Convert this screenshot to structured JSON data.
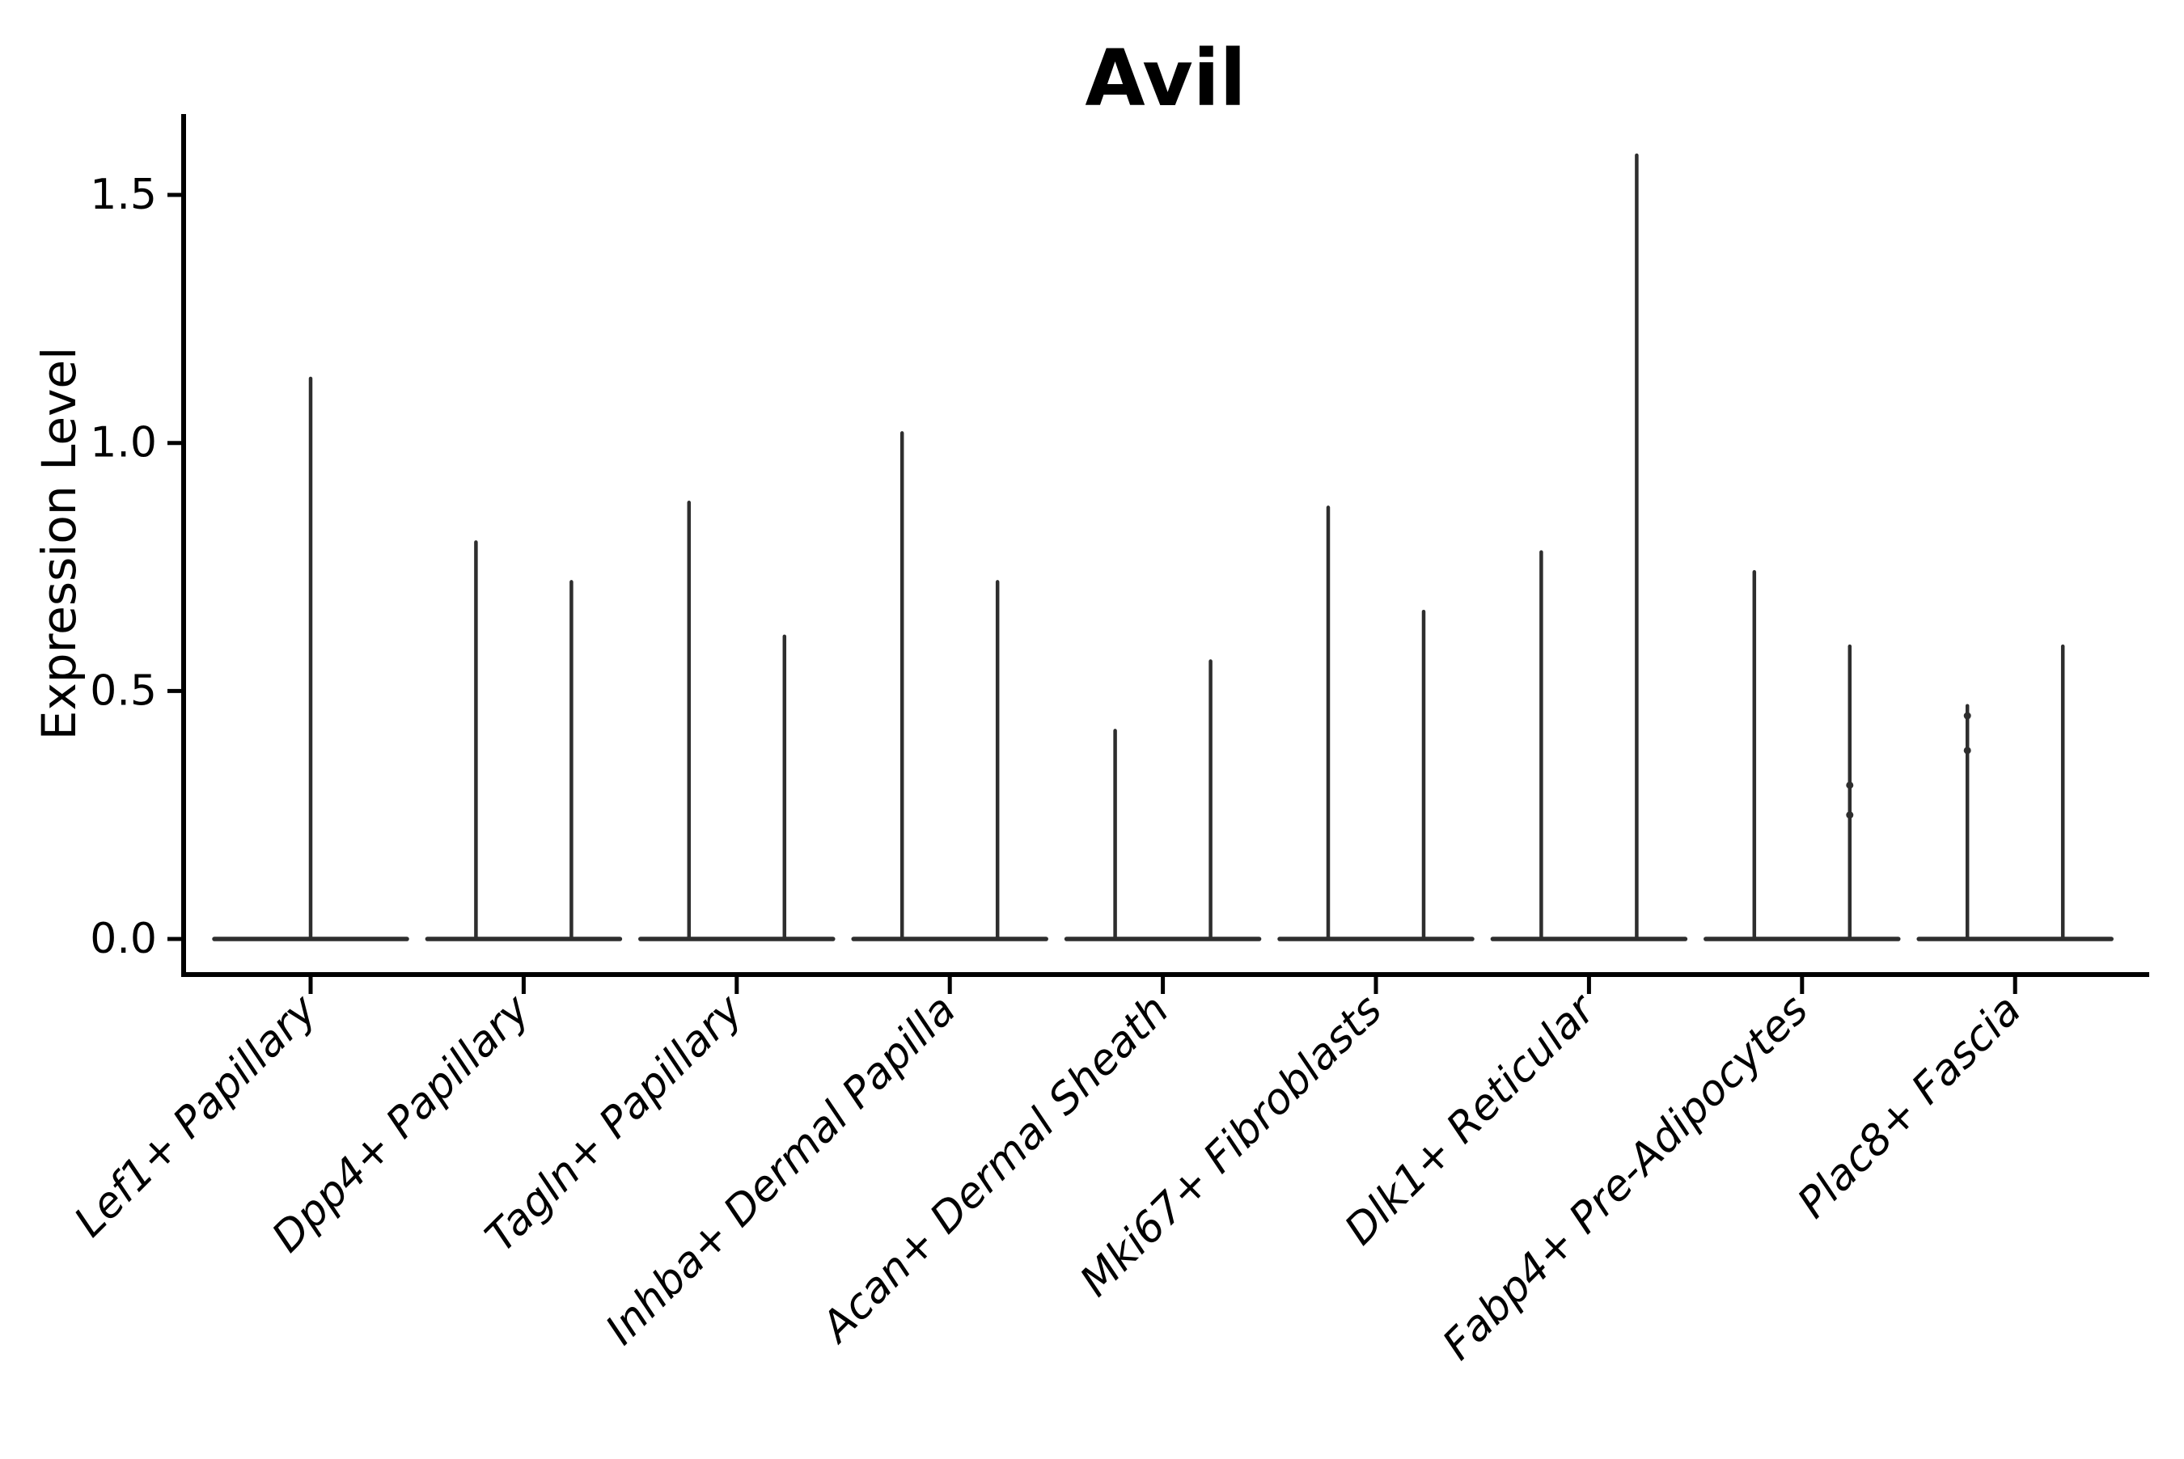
{
  "title": "Avil",
  "y_axis": {
    "label": "Expression Level",
    "tick_labels": [
      "0.0",
      "0.5",
      "1.0",
      "1.5"
    ],
    "tick_values": [
      0.0,
      0.5,
      1.0,
      1.5
    ]
  },
  "x_axis": {
    "label": "",
    "categories": [
      "Lef1+ Papillary",
      "Dpp4+ Papillary",
      "Tagln+ Papillary",
      "Inhba+ Dermal Papilla",
      "Acan+ Dermal Sheath",
      "Mki67+ Fibroblasts",
      "Dlk1+ Reticular",
      "Fabp4+ Pre-Adipocytes",
      "Plac8+ Fascia"
    ]
  },
  "style": {
    "violin_color": "#2e2e2e",
    "axis_color": "#000000",
    "background": "#ffffff"
  },
  "chart_data": {
    "type": "violin",
    "title": "Avil",
    "xlabel": "",
    "ylabel": "Expression Level",
    "ylim": [
      0,
      1.66
    ],
    "yticks": [
      0.0,
      0.5,
      1.0,
      1.5
    ],
    "grid": false,
    "legend": "none",
    "note": "Seurat-style violin plot; expression is near zero for most cells so each violin collapses to a flat baseline at 0 with a thin vertical spike up to the category maximum. Category 1 shows a single centered violin; all other categories show a left and right violin pair.",
    "groups": [
      {
        "category": "Lef1+ Papillary",
        "violins": [
          {
            "pos": 0,
            "max": 1.13
          }
        ]
      },
      {
        "category": "Dpp4+ Papillary",
        "violins": [
          {
            "pos": -1,
            "max": 0.8
          },
          {
            "pos": 1,
            "max": 0.72
          }
        ]
      },
      {
        "category": "Tagln+ Papillary",
        "violins": [
          {
            "pos": -1,
            "max": 0.88
          },
          {
            "pos": 1,
            "max": 0.61
          }
        ]
      },
      {
        "category": "Inhba+ Dermal Papilla",
        "violins": [
          {
            "pos": -1,
            "max": 1.02
          },
          {
            "pos": 1,
            "max": 0.72
          }
        ]
      },
      {
        "category": "Acan+ Dermal Sheath",
        "violins": [
          {
            "pos": -1,
            "max": 0.42
          },
          {
            "pos": 1,
            "max": 0.56
          }
        ]
      },
      {
        "category": "Mki67+ Fibroblasts",
        "violins": [
          {
            "pos": -1,
            "max": 0.87
          },
          {
            "pos": 1,
            "max": 0.66
          }
        ]
      },
      {
        "category": "Dlk1+ Reticular",
        "violins": [
          {
            "pos": -1,
            "max": 0.78
          },
          {
            "pos": 1,
            "max": 1.58
          }
        ]
      },
      {
        "category": "Fabp4+ Pre-Adipocytes",
        "violins": [
          {
            "pos": -1,
            "max": 0.74
          },
          {
            "pos": 1,
            "max": 0.59,
            "points": [
              0.31,
              0.25
            ]
          }
        ]
      },
      {
        "category": "Plac8+ Fascia",
        "violins": [
          {
            "pos": -1,
            "max": 0.47,
            "points": [
              0.45,
              0.38
            ]
          },
          {
            "pos": 1,
            "max": 0.59
          }
        ]
      }
    ]
  }
}
